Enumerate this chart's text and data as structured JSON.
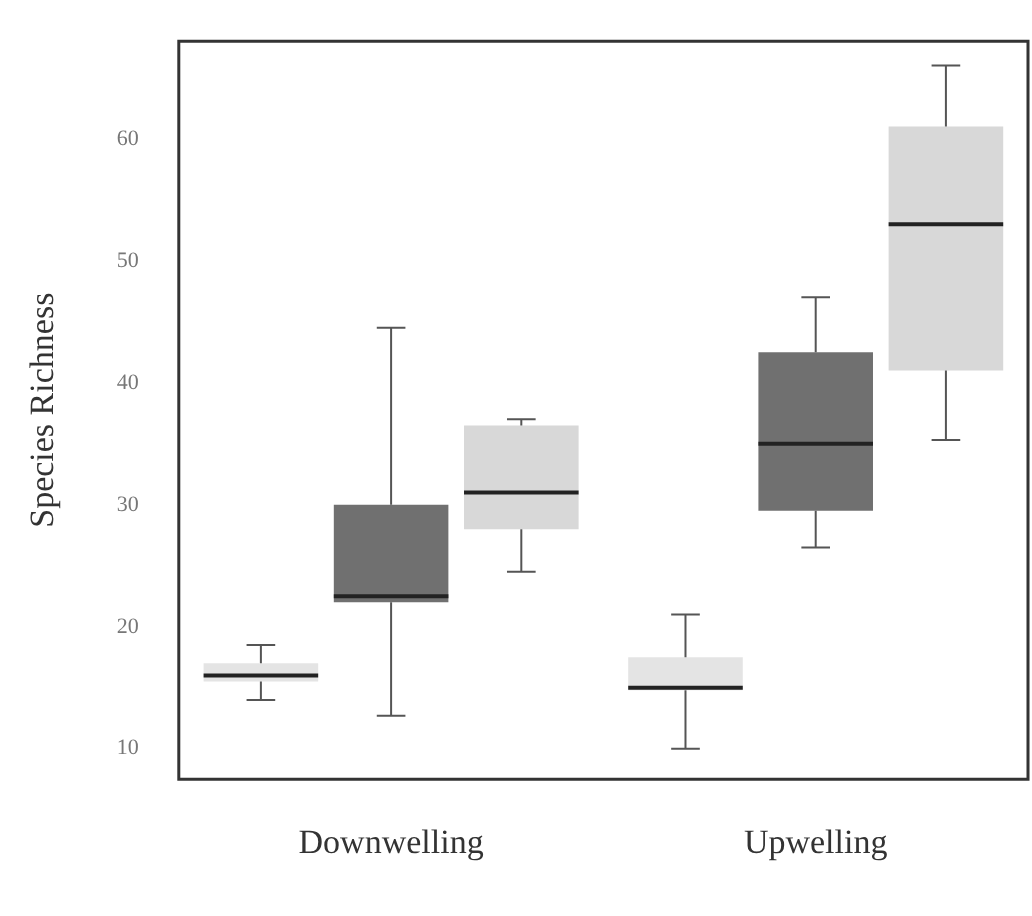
{
  "chart_data": {
    "type": "box",
    "ylabel": "Species Richness",
    "categories": [
      "Downwelling",
      "Upwelling"
    ],
    "series": [
      {
        "color": "#e4e4e4",
        "boxes": [
          {
            "low": 14,
            "q1": 15.5,
            "median": 16,
            "q3": 17,
            "high": 18.5
          },
          {
            "low": 10,
            "q1": 14.8,
            "median": 15,
            "q3": 17.5,
            "high": 21
          }
        ]
      },
      {
        "color": "#707070",
        "boxes": [
          {
            "low": 12.7,
            "q1": 22,
            "median": 22.5,
            "q3": 30,
            "high": 44.5
          },
          {
            "low": 26.5,
            "q1": 29.5,
            "median": 35,
            "q3": 42.5,
            "high": 47
          }
        ]
      },
      {
        "color": "#d8d8d8",
        "boxes": [
          {
            "low": 24.5,
            "q1": 28,
            "median": 31,
            "q3": 36.5,
            "high": 37
          },
          {
            "low": 35.3,
            "q1": 41,
            "median": 53,
            "q3": 61,
            "high": 66
          }
        ]
      }
    ],
    "ylim": [
      7.5,
      68
    ],
    "yticks": [
      10,
      20,
      30,
      40,
      50,
      60
    ]
  }
}
